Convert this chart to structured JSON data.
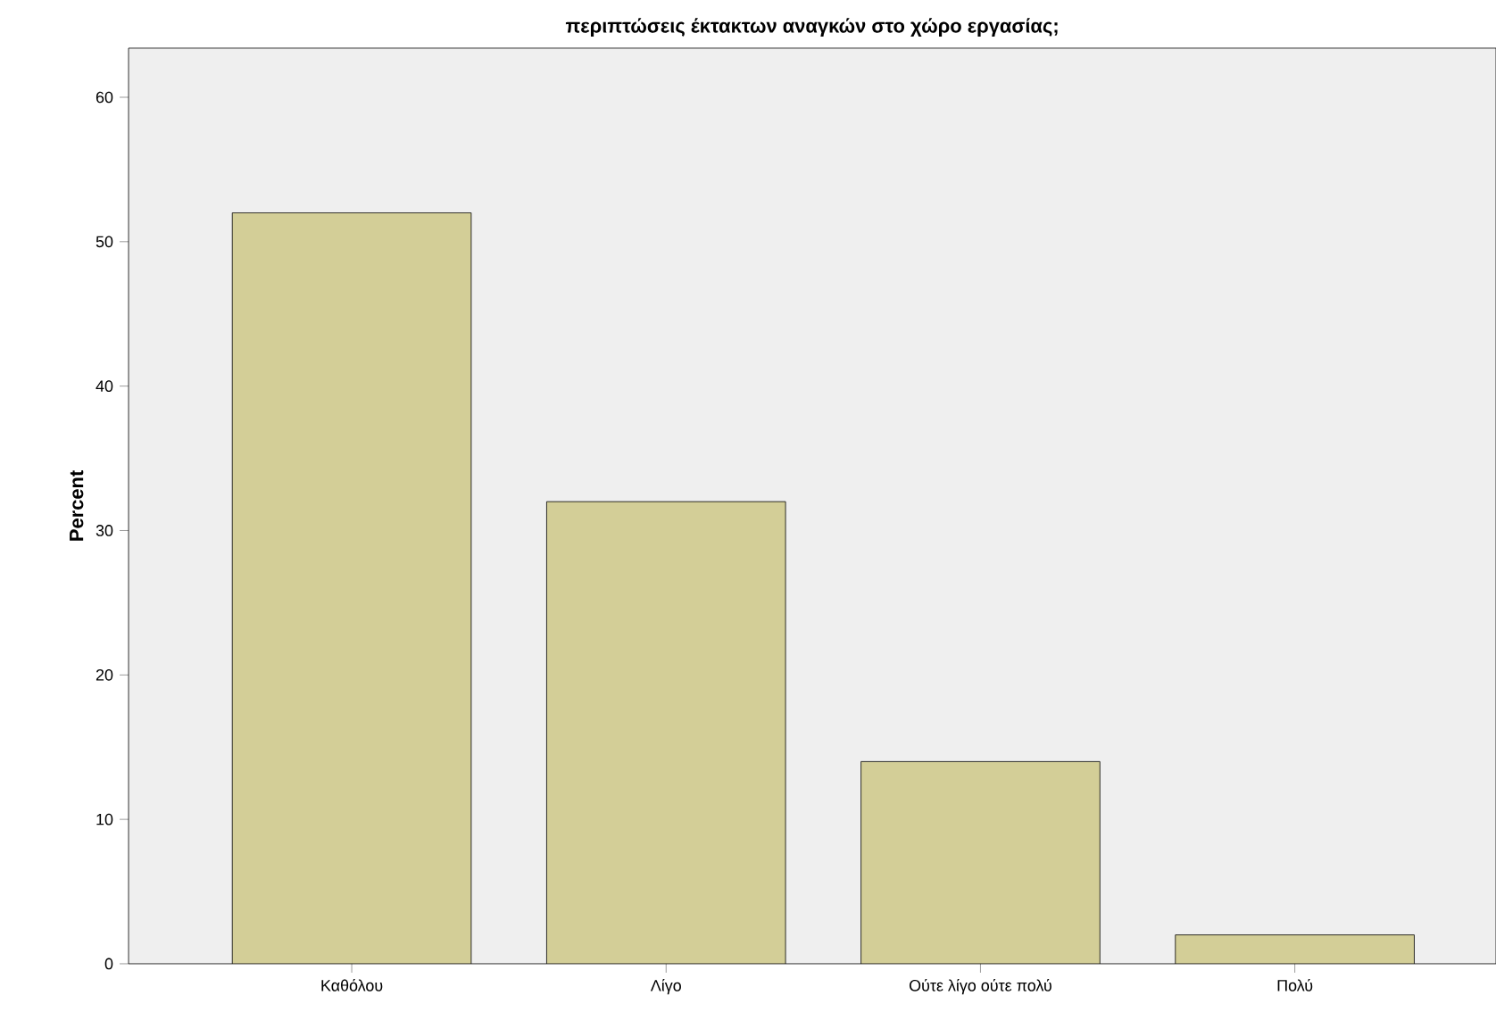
{
  "chart_data": {
    "type": "bar",
    "title": "περιπτώσεις έκτακτων αναγκών στο χώρο εργασίας;",
    "ylabel": "Percent",
    "categories": [
      "Καθόλου",
      "Λίγο",
      "Ούτε  λίγο  ούτε  πολύ",
      "Πολύ"
    ],
    "values": [
      52,
      32,
      14,
      2
    ],
    "color": "#d3ce97",
    "ylim": [
      0,
      63.4
    ],
    "yticks": [
      0,
      10,
      20,
      30,
      40,
      50,
      60
    ]
  }
}
